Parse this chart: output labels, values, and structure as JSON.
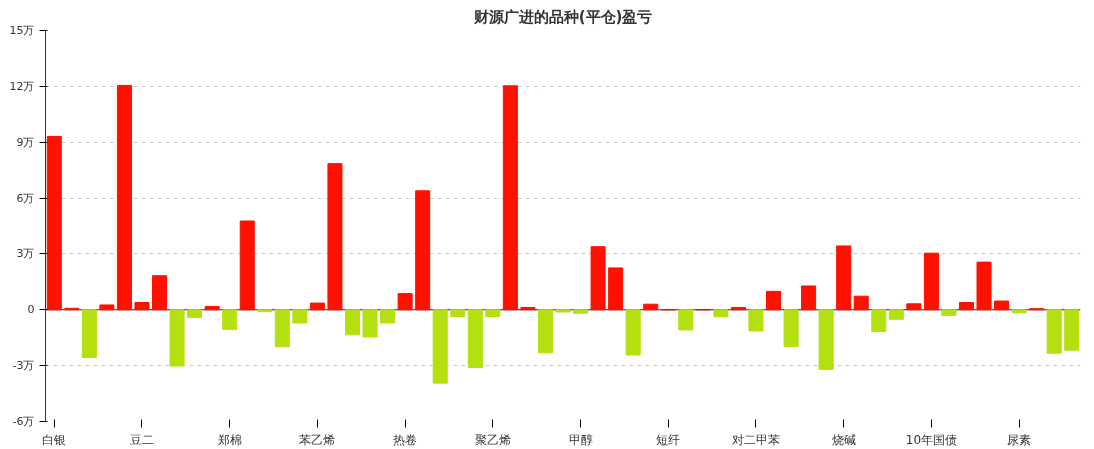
{
  "chart_data": {
    "type": "bar",
    "title": "财源广进的品种(平仓)盈亏",
    "categories": [
      "白银",
      null,
      null,
      null,
      null,
      "豆二",
      null,
      null,
      null,
      null,
      "郑棉",
      null,
      null,
      null,
      null,
      "苯乙烯",
      null,
      null,
      null,
      null,
      "热卷",
      null,
      null,
      null,
      null,
      "聚乙烯",
      null,
      null,
      null,
      null,
      "甲醇",
      null,
      null,
      null,
      null,
      "短纤",
      null,
      null,
      null,
      null,
      "对二甲苯",
      null,
      null,
      null,
      null,
      "烧碱",
      null,
      null,
      null,
      null,
      "10年国债",
      null,
      null,
      null,
      null,
      "尿素",
      null,
      null,
      null
    ],
    "values": [
      9.31,
      0.08,
      -2.56,
      0.26,
      12.05,
      0.39,
      1.83,
      -3.02,
      -0.41,
      0.18,
      -1.05,
      4.77,
      -0.1,
      -1.99,
      -0.71,
      0.36,
      7.85,
      -1.34,
      -1.46,
      -0.71,
      0.87,
      6.39,
      -3.94,
      -0.36,
      -3.1,
      -0.36,
      12.03,
      0.12,
      -2.31,
      -0.12,
      -0.18,
      3.39,
      2.25,
      -2.43,
      0.3,
      0,
      -1.08,
      0,
      -0.37,
      0.12,
      -1.14,
      0.99,
      -1.97,
      1.28,
      -3.2,
      3.43,
      0.73,
      -1.16,
      -0.51,
      0.32,
      3.04,
      -0.3,
      0.39,
      2.56,
      0.47,
      -0.16,
      0.06,
      -2.33,
      -2.17
    ],
    "colors": [
      "#ff1100",
      "#ff1100",
      "#b5e00f",
      "#ff1100",
      "#ff1100",
      "#ff1100",
      "#ff1100",
      "#b5e00f",
      "#b5e00f",
      "#ff1100",
      "#b5e00f",
      "#ff1100",
      "#b5e00f",
      "#b5e00f",
      "#b5e00f",
      "#ff1100",
      "#ff1100",
      "#b5e00f",
      "#b5e00f",
      "#b5e00f",
      "#ff1100",
      "#ff1100",
      "#b5e00f",
      "#b5e00f",
      "#b5e00f",
      "#b5e00f",
      "#ff1100",
      "#ff1100",
      "#b5e00f",
      "#b5e00f",
      "#b5e00f",
      "#ff1100",
      "#ff1100",
      "#b5e00f",
      "#ff1100",
      "#ff1100",
      "#b5e00f",
      "#ff1100",
      "#b5e00f",
      "#ff1100",
      "#b5e00f",
      "#ff1100",
      "#b5e00f",
      "#ff1100",
      "#b5e00f",
      "#ff1100",
      "#ff1100",
      "#b5e00f",
      "#b5e00f",
      "#ff1100",
      "#ff1100",
      "#b5e00f",
      "#ff1100",
      "#ff1100",
      "#ff1100",
      "#b5e00f",
      "#ff1100",
      "#b5e00f",
      "#b5e00f"
    ],
    "ylim": [
      -6,
      15
    ],
    "yticks": [
      {
        "value": -6,
        "label": "-6万"
      },
      {
        "value": -3,
        "label": "-3万"
      },
      0,
      {
        "value": 3,
        "label": "3万"
      },
      {
        "value": 6,
        "label": "6万"
      },
      {
        "value": 9,
        "label": "9万"
      },
      {
        "value": 12,
        "label": "12万"
      },
      {
        "value": 15,
        "label": "15万"
      }
    ],
    "grid": "y"
  }
}
